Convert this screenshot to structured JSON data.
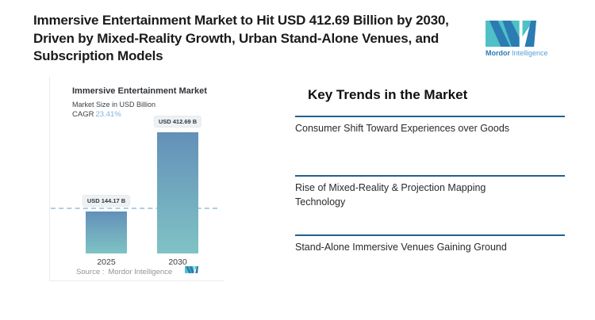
{
  "headline": {
    "line1": "Immersive Entertainment Market to Hit USD 412.69 Billion by 2030,",
    "line2": "Driven by Mixed-Reality Growth, Urban Stand-Alone Venues, and",
    "line3": "Subscription Models"
  },
  "brand": {
    "name_bold": "Mordor",
    "name_light": "Intelligence",
    "teal": "#4ec0c6",
    "blue": "#2c7bb2",
    "light_blue": "#58a0d4"
  },
  "chart": {
    "cagr_label": "CAGR",
    "source_prefix": "Source :",
    "source_value": "Mordor Intelligence"
  },
  "chart_data": {
    "type": "bar",
    "title": "Immersive Entertainment Market",
    "subtitle": "Market Size in USD Billion",
    "cagr": "23.41%",
    "categories": [
      "2025",
      "2030"
    ],
    "values": [
      144.17,
      412.69
    ],
    "value_labels": [
      "USD 144.17 B",
      "USD 412.69 B"
    ],
    "unit": "USD Billion",
    "grid": false,
    "baseline_at_first_value": true,
    "legend": false,
    "colors": {
      "bar_top": "#6390b8",
      "bar_bottom": "#7fc3c5",
      "dashed_line": "#aecfe3",
      "cagr_value": "#7fb3da"
    }
  },
  "trends": {
    "heading": "Key Trends in the Market",
    "divider_color": "#21618e",
    "items": [
      {
        "label": "Consumer Shift Toward Experiences over Goods"
      },
      {
        "label": "Rise of Mixed-Reality & Projection Mapping Technology"
      },
      {
        "label": "Stand-Alone Immersive Venues Gaining Ground"
      }
    ]
  }
}
